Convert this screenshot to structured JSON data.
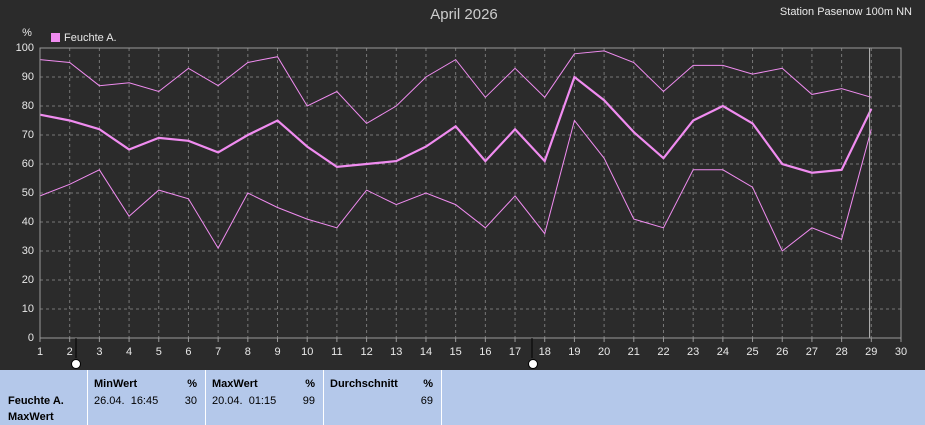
{
  "chart_data": {
    "type": "line",
    "title": "April 2026",
    "subtitle": "Station Pasenow 100m NN",
    "y_label": "%",
    "x": [
      1,
      2,
      3,
      4,
      5,
      6,
      7,
      8,
      9,
      10,
      11,
      12,
      13,
      14,
      15,
      16,
      17,
      18,
      19,
      20,
      21,
      22,
      23,
      24,
      25,
      26,
      27,
      28,
      29
    ],
    "xlim": [
      1,
      30
    ],
    "xticks": [
      1,
      2,
      3,
      4,
      5,
      6,
      7,
      8,
      9,
      10,
      11,
      12,
      13,
      14,
      15,
      16,
      17,
      18,
      19,
      20,
      21,
      22,
      23,
      24,
      25,
      26,
      27,
      28,
      29,
      30
    ],
    "ylim": [
      0,
      100
    ],
    "yticks": [
      0,
      10,
      20,
      30,
      40,
      50,
      60,
      70,
      80,
      90,
      100
    ],
    "grid": true,
    "series": [
      {
        "name": "Feuchte A.",
        "color": "#f08cf0",
        "values": [
          77,
          75,
          72,
          65,
          69,
          68,
          64,
          70,
          75,
          66,
          59,
          60,
          61,
          66,
          73,
          61,
          72,
          61,
          90,
          82,
          71,
          62,
          75,
          80,
          74,
          60,
          57,
          58,
          79
        ],
        "max_values": [
          96,
          95,
          87,
          88,
          85,
          93,
          87,
          95,
          97,
          80,
          85,
          74,
          80,
          90,
          96,
          83,
          93,
          83,
          98,
          99,
          95,
          85,
          94,
          94,
          91,
          93,
          84,
          86,
          83
        ],
        "min_values": [
          49,
          53,
          58,
          42,
          51,
          48,
          31,
          50,
          45,
          41,
          38,
          51,
          46,
          50,
          46,
          38,
          49,
          36,
          75,
          62,
          41,
          38,
          58,
          58,
          52,
          30,
          38,
          34,
          72
        ]
      }
    ]
  },
  "summary": {
    "row_label": "Feuchte A.",
    "row_sublabel": "MaxWert",
    "columns": [
      {
        "header": "MinWert",
        "unit": "%",
        "time": "26.04.  16:45",
        "value": "30"
      },
      {
        "header": "MaxWert",
        "unit": "%",
        "time": "20.04.  01:15",
        "value": "99"
      },
      {
        "header": "Durchschnitt",
        "unit": "%",
        "time": "",
        "value": "69"
      }
    ]
  }
}
